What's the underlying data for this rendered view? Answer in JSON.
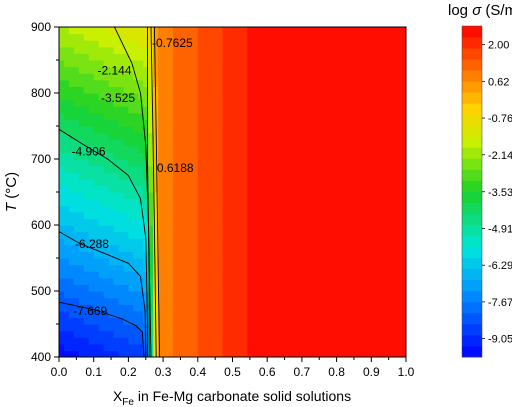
{
  "chart_data": {
    "type": "heatmap",
    "subtype": "filled-contour",
    "title": "",
    "xlabel_main": "X",
    "xlabel_sub": "Fe",
    "xlabel_rest": " in Fe-Mg carbonate solid solutions",
    "ylabel_italic": "T",
    "ylabel_unit": " (°C)",
    "xlim": [
      0.0,
      1.0
    ],
    "ylim": [
      400,
      900
    ],
    "x_ticks": [
      "0.0",
      "0.1",
      "0.2",
      "0.3",
      "0.4",
      "0.5",
      "0.6",
      "0.7",
      "0.8",
      "0.9",
      "1.0"
    ],
    "y_ticks": [
      "400",
      "500",
      "600",
      "700",
      "800",
      "900"
    ],
    "colorbar": {
      "title_prefix": "log ",
      "title_symbol": "σ",
      "title_unit": " (S/m)",
      "min": -9.74,
      "max": 2.7,
      "ticks": [
        "2.00",
        "0.62",
        "-0.76",
        "-2.14",
        "-3.53",
        "-4.91",
        "-6.29",
        "-7.67",
        "-9.05"
      ],
      "tick_values": [
        2.0,
        0.62,
        -0.76,
        -2.14,
        -3.53,
        -4.91,
        -6.29,
        -7.67,
        -9.05
      ]
    },
    "contour_lines": [
      {
        "label": "-0.7625",
        "level": -0.7625,
        "points": [
          [
            0.265,
            900
          ],
          [
            0.27,
            760
          ],
          [
            0.275,
            600
          ],
          [
            0.28,
            400
          ]
        ]
      },
      {
        "label": "0.6188",
        "level": 0.6188,
        "points": [
          [
            0.275,
            900
          ],
          [
            0.28,
            740
          ],
          [
            0.285,
            560
          ],
          [
            0.29,
            400
          ]
        ]
      },
      {
        "label": "-2.144",
        "level": -2.144,
        "points": [
          [
            0.16,
            900
          ],
          [
            0.21,
            845
          ],
          [
            0.235,
            800
          ],
          [
            0.25,
            720
          ],
          [
            0.258,
            600
          ],
          [
            0.265,
            400
          ]
        ]
      },
      {
        "label": "-3.525",
        "level": -3.525,
        "points": [
          [
            0.255,
            900
          ],
          [
            0.255,
            700
          ],
          [
            0.26,
            520
          ],
          [
            0.26,
            400
          ]
        ]
      },
      {
        "label": "-4.906",
        "level": -4.906,
        "points": [
          [
            0.0,
            745
          ],
          [
            0.07,
            722
          ],
          [
            0.14,
            700
          ],
          [
            0.2,
            675
          ],
          [
            0.235,
            640
          ],
          [
            0.25,
            580
          ],
          [
            0.255,
            450
          ],
          [
            0.255,
            400
          ]
        ]
      },
      {
        "label": "-6.288",
        "level": -6.288,
        "points": [
          [
            0.0,
            590
          ],
          [
            0.06,
            572
          ],
          [
            0.14,
            555
          ],
          [
            0.2,
            542
          ],
          [
            0.235,
            522
          ],
          [
            0.248,
            470
          ],
          [
            0.25,
            400
          ]
        ]
      },
      {
        "label": "-7.669",
        "level": -7.669,
        "points": [
          [
            0.0,
            483
          ],
          [
            0.1,
            472
          ],
          [
            0.18,
            458
          ],
          [
            0.22,
            448
          ],
          [
            0.24,
            438
          ],
          [
            0.245,
            400
          ]
        ]
      }
    ]
  }
}
